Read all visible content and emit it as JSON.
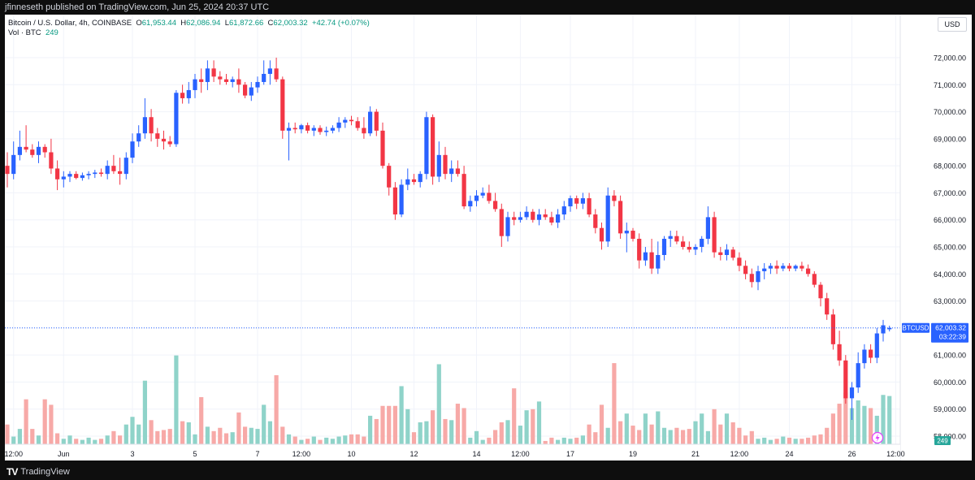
{
  "header": {
    "published_text": "jfinneseth published on TradingView.com, Jun 25, 2024 20:37 UTC"
  },
  "legend": {
    "symbol_line": "Bitcoin / U.S. Dollar, 4h, COINBASE",
    "open_label": "O",
    "open": "61,953.44",
    "high_label": "H",
    "high": "62,086.94",
    "low_label": "L",
    "low": "61,872.66",
    "close_label": "C",
    "close": "62,003.32",
    "change": "+42.74 (+0.07%)",
    "vol_label": "Vol · BTC",
    "vol_value": "249"
  },
  "currency": "USD",
  "price_tag": {
    "symbol": "BTCUSD",
    "price": "62,003.32",
    "countdown": "03:22:39"
  },
  "volume_tag": "249",
  "footer": {
    "brand": "TradingView"
  },
  "colors": {
    "up": "#2962ff",
    "down": "#f23645",
    "vol_up": "#8fd3c9",
    "vol_down": "#f7a9a7"
  },
  "chart_data": {
    "type": "candlestick",
    "title": "",
    "ylim": [
      57000,
      73000
    ],
    "y_ticks": [
      58000,
      59000,
      60000,
      61000,
      62000,
      63000,
      64000,
      65000,
      66000,
      67000,
      68000,
      69000,
      70000,
      71000,
      72000
    ],
    "y_tick_labels": [
      "58,000.00",
      "59,000.00",
      "60,000.00",
      "61,000.00",
      "62,000.00",
      "63,000.00",
      "64,000.00",
      "65,000.00",
      "66,000.00",
      "67,000.00",
      "68,000.00",
      "69,000.00",
      "70,000.00",
      "71,000.00",
      "72,000.00"
    ],
    "x_ticks": [
      {
        "index": 1,
        "label": "12:00"
      },
      {
        "index": 9,
        "label": "Jun"
      },
      {
        "index": 20,
        "label": "3"
      },
      {
        "index": 30,
        "label": "5"
      },
      {
        "index": 40,
        "label": "7"
      },
      {
        "index": 47,
        "label": "12:00"
      },
      {
        "index": 55,
        "label": "10"
      },
      {
        "index": 65,
        "label": "12"
      },
      {
        "index": 75,
        "label": "14"
      },
      {
        "index": 82,
        "label": "12:00"
      },
      {
        "index": 90,
        "label": "17"
      },
      {
        "index": 100,
        "label": "19"
      },
      {
        "index": 110,
        "label": "21"
      },
      {
        "index": 117,
        "label": "12:00"
      },
      {
        "index": 125,
        "label": "24"
      },
      {
        "index": 135,
        "label": "26"
      },
      {
        "index": 142,
        "label": "12:00"
      }
    ],
    "current_price": 62003.32,
    "volume_max": 10000,
    "candles": [
      {
        "o": 68000,
        "h": 68500,
        "l": 67200,
        "c": 67700
      },
      {
        "o": 67700,
        "h": 68900,
        "l": 67500,
        "c": 68400
      },
      {
        "o": 68400,
        "h": 69300,
        "l": 68200,
        "c": 68700
      },
      {
        "o": 68700,
        "h": 69500,
        "l": 68500,
        "c": 68600
      },
      {
        "o": 68600,
        "h": 68800,
        "l": 68300,
        "c": 68400
      },
      {
        "o": 68400,
        "h": 68900,
        "l": 68100,
        "c": 68700
      },
      {
        "o": 68700,
        "h": 68800,
        "l": 68300,
        "c": 68500
      },
      {
        "o": 68500,
        "h": 69000,
        "l": 67700,
        "c": 67900
      },
      {
        "o": 67900,
        "h": 68200,
        "l": 67100,
        "c": 67500
      },
      {
        "o": 67500,
        "h": 67800,
        "l": 67200,
        "c": 67600
      },
      {
        "o": 67600,
        "h": 67800,
        "l": 67400,
        "c": 67700
      },
      {
        "o": 67700,
        "h": 67800,
        "l": 67500,
        "c": 67550
      },
      {
        "o": 67550,
        "h": 67750,
        "l": 67450,
        "c": 67650
      },
      {
        "o": 67650,
        "h": 67800,
        "l": 67500,
        "c": 67700
      },
      {
        "o": 67700,
        "h": 67850,
        "l": 67550,
        "c": 67750
      },
      {
        "o": 67750,
        "h": 67900,
        "l": 67600,
        "c": 67700
      },
      {
        "o": 67700,
        "h": 68200,
        "l": 67500,
        "c": 68000
      },
      {
        "o": 68000,
        "h": 68400,
        "l": 67700,
        "c": 67800
      },
      {
        "o": 67800,
        "h": 68300,
        "l": 67300,
        "c": 67700
      },
      {
        "o": 67700,
        "h": 68500,
        "l": 67500,
        "c": 68300
      },
      {
        "o": 68300,
        "h": 69200,
        "l": 68100,
        "c": 68900
      },
      {
        "o": 68900,
        "h": 69500,
        "l": 68700,
        "c": 69200
      },
      {
        "o": 69200,
        "h": 70500,
        "l": 69000,
        "c": 69800
      },
      {
        "o": 69800,
        "h": 70100,
        "l": 68900,
        "c": 69200
      },
      {
        "o": 69200,
        "h": 69400,
        "l": 68700,
        "c": 69000
      },
      {
        "o": 69000,
        "h": 69300,
        "l": 68600,
        "c": 68900
      },
      {
        "o": 68900,
        "h": 69100,
        "l": 68700,
        "c": 68800
      },
      {
        "o": 68800,
        "h": 70800,
        "l": 68700,
        "c": 70700
      },
      {
        "o": 70700,
        "h": 71000,
        "l": 70300,
        "c": 70500
      },
      {
        "o": 70500,
        "h": 71100,
        "l": 70300,
        "c": 70800
      },
      {
        "o": 70800,
        "h": 71400,
        "l": 70500,
        "c": 71200
      },
      {
        "o": 71200,
        "h": 71600,
        "l": 70700,
        "c": 71100
      },
      {
        "o": 71100,
        "h": 71900,
        "l": 70800,
        "c": 71600
      },
      {
        "o": 71600,
        "h": 71900,
        "l": 71100,
        "c": 71300
      },
      {
        "o": 71300,
        "h": 71500,
        "l": 71000,
        "c": 71200
      },
      {
        "o": 71200,
        "h": 71400,
        "l": 71000,
        "c": 71100
      },
      {
        "o": 71100,
        "h": 71300,
        "l": 70900,
        "c": 71200
      },
      {
        "o": 71200,
        "h": 71600,
        "l": 70700,
        "c": 71000
      },
      {
        "o": 71000,
        "h": 71100,
        "l": 70500,
        "c": 70600
      },
      {
        "o": 70600,
        "h": 71100,
        "l": 70400,
        "c": 70900
      },
      {
        "o": 70900,
        "h": 71300,
        "l": 70700,
        "c": 71100
      },
      {
        "o": 71100,
        "h": 71900,
        "l": 71000,
        "c": 71400
      },
      {
        "o": 71400,
        "h": 71900,
        "l": 71000,
        "c": 71600
      },
      {
        "o": 71600,
        "h": 72000,
        "l": 71100,
        "c": 71200
      },
      {
        "o": 71200,
        "h": 71300,
        "l": 69000,
        "c": 69300
      },
      {
        "o": 69300,
        "h": 69600,
        "l": 68200,
        "c": 69400
      },
      {
        "o": 69400,
        "h": 69600,
        "l": 69200,
        "c": 69350
      },
      {
        "o": 69350,
        "h": 69550,
        "l": 69200,
        "c": 69500
      },
      {
        "o": 69500,
        "h": 69600,
        "l": 69200,
        "c": 69300
      },
      {
        "o": 69300,
        "h": 69500,
        "l": 69100,
        "c": 69400
      },
      {
        "o": 69400,
        "h": 69500,
        "l": 69150,
        "c": 69250
      },
      {
        "o": 69250,
        "h": 69450,
        "l": 69100,
        "c": 69300
      },
      {
        "o": 69300,
        "h": 69500,
        "l": 69200,
        "c": 69400
      },
      {
        "o": 69400,
        "h": 69800,
        "l": 69250,
        "c": 69600
      },
      {
        "o": 69600,
        "h": 69800,
        "l": 69400,
        "c": 69700
      },
      {
        "o": 69700,
        "h": 69850,
        "l": 69500,
        "c": 69650
      },
      {
        "o": 69650,
        "h": 69800,
        "l": 69300,
        "c": 69400
      },
      {
        "o": 69400,
        "h": 69800,
        "l": 69000,
        "c": 69200
      },
      {
        "o": 69200,
        "h": 70200,
        "l": 69100,
        "c": 70000
      },
      {
        "o": 70000,
        "h": 70100,
        "l": 69100,
        "c": 69300
      },
      {
        "o": 69300,
        "h": 69600,
        "l": 67900,
        "c": 68000
      },
      {
        "o": 68000,
        "h": 68100,
        "l": 66900,
        "c": 67200
      },
      {
        "o": 67200,
        "h": 67400,
        "l": 66000,
        "c": 66200
      },
      {
        "o": 66200,
        "h": 67500,
        "l": 66100,
        "c": 67300
      },
      {
        "o": 67300,
        "h": 67900,
        "l": 67100,
        "c": 67500
      },
      {
        "o": 67500,
        "h": 67700,
        "l": 67300,
        "c": 67400
      },
      {
        "o": 67400,
        "h": 67800,
        "l": 67200,
        "c": 67700
      },
      {
        "o": 67700,
        "h": 70000,
        "l": 67500,
        "c": 69800
      },
      {
        "o": 69800,
        "h": 69900,
        "l": 67300,
        "c": 67600
      },
      {
        "o": 67600,
        "h": 68900,
        "l": 67400,
        "c": 68400
      },
      {
        "o": 68400,
        "h": 68700,
        "l": 67500,
        "c": 67700
      },
      {
        "o": 67700,
        "h": 68200,
        "l": 67400,
        "c": 67900
      },
      {
        "o": 67900,
        "h": 68200,
        "l": 67600,
        "c": 67700
      },
      {
        "o": 67700,
        "h": 68000,
        "l": 66400,
        "c": 66500
      },
      {
        "o": 66500,
        "h": 66900,
        "l": 66300,
        "c": 66700
      },
      {
        "o": 66700,
        "h": 67100,
        "l": 66500,
        "c": 66900
      },
      {
        "o": 66900,
        "h": 67200,
        "l": 66800,
        "c": 67000
      },
      {
        "o": 67000,
        "h": 67300,
        "l": 66600,
        "c": 66700
      },
      {
        "o": 66700,
        "h": 67000,
        "l": 66300,
        "c": 66400
      },
      {
        "o": 66400,
        "h": 66600,
        "l": 65000,
        "c": 65400
      },
      {
        "o": 65400,
        "h": 66300,
        "l": 65200,
        "c": 66100
      },
      {
        "o": 66100,
        "h": 66300,
        "l": 65800,
        "c": 66000
      },
      {
        "o": 66000,
        "h": 66300,
        "l": 65900,
        "c": 66100
      },
      {
        "o": 66100,
        "h": 66500,
        "l": 66000,
        "c": 66300
      },
      {
        "o": 66300,
        "h": 66400,
        "l": 65900,
        "c": 66000
      },
      {
        "o": 66000,
        "h": 66400,
        "l": 65800,
        "c": 66200
      },
      {
        "o": 66200,
        "h": 66400,
        "l": 66000,
        "c": 66100
      },
      {
        "o": 66100,
        "h": 66300,
        "l": 65800,
        "c": 65900
      },
      {
        "o": 65900,
        "h": 66400,
        "l": 65700,
        "c": 66200
      },
      {
        "o": 66200,
        "h": 66700,
        "l": 66000,
        "c": 66500
      },
      {
        "o": 66500,
        "h": 66900,
        "l": 66300,
        "c": 66800
      },
      {
        "o": 66800,
        "h": 66900,
        "l": 66400,
        "c": 66600
      },
      {
        "o": 66600,
        "h": 67000,
        "l": 66400,
        "c": 66800
      },
      {
        "o": 66800,
        "h": 67000,
        "l": 66100,
        "c": 66200
      },
      {
        "o": 66200,
        "h": 66400,
        "l": 65500,
        "c": 65700
      },
      {
        "o": 65700,
        "h": 65900,
        "l": 64900,
        "c": 65200
      },
      {
        "o": 65200,
        "h": 67200,
        "l": 65000,
        "c": 66900
      },
      {
        "o": 66900,
        "h": 67100,
        "l": 66500,
        "c": 66700
      },
      {
        "o": 66700,
        "h": 66900,
        "l": 65300,
        "c": 65500
      },
      {
        "o": 65500,
        "h": 65900,
        "l": 64800,
        "c": 65600
      },
      {
        "o": 65600,
        "h": 65700,
        "l": 65200,
        "c": 65300
      },
      {
        "o": 65300,
        "h": 65500,
        "l": 64200,
        "c": 64500
      },
      {
        "o": 64500,
        "h": 65000,
        "l": 64300,
        "c": 64800
      },
      {
        "o": 64800,
        "h": 65300,
        "l": 64000,
        "c": 64200
      },
      {
        "o": 64200,
        "h": 65200,
        "l": 64000,
        "c": 64700
      },
      {
        "o": 64700,
        "h": 65400,
        "l": 64500,
        "c": 65300
      },
      {
        "o": 65300,
        "h": 65600,
        "l": 65000,
        "c": 65400
      },
      {
        "o": 65400,
        "h": 65600,
        "l": 65100,
        "c": 65200
      },
      {
        "o": 65200,
        "h": 65400,
        "l": 64900,
        "c": 65000
      },
      {
        "o": 65000,
        "h": 65200,
        "l": 64800,
        "c": 64900
      },
      {
        "o": 64900,
        "h": 65100,
        "l": 64700,
        "c": 65000
      },
      {
        "o": 65000,
        "h": 65400,
        "l": 64800,
        "c": 65300
      },
      {
        "o": 65300,
        "h": 66500,
        "l": 65100,
        "c": 66100
      },
      {
        "o": 66100,
        "h": 66300,
        "l": 64600,
        "c": 64800
      },
      {
        "o": 64800,
        "h": 65000,
        "l": 64500,
        "c": 64700
      },
      {
        "o": 64700,
        "h": 65100,
        "l": 64500,
        "c": 64900
      },
      {
        "o": 64900,
        "h": 65000,
        "l": 64500,
        "c": 64600
      },
      {
        "o": 64600,
        "h": 64800,
        "l": 64100,
        "c": 64300
      },
      {
        "o": 64300,
        "h": 64500,
        "l": 63800,
        "c": 64000
      },
      {
        "o": 64000,
        "h": 64200,
        "l": 63500,
        "c": 63700
      },
      {
        "o": 63700,
        "h": 64300,
        "l": 63400,
        "c": 64100
      },
      {
        "o": 64100,
        "h": 64400,
        "l": 63800,
        "c": 64200
      },
      {
        "o": 64200,
        "h": 64400,
        "l": 64000,
        "c": 64300
      },
      {
        "o": 64300,
        "h": 64500,
        "l": 64000,
        "c": 64200
      },
      {
        "o": 64200,
        "h": 64400,
        "l": 64100,
        "c": 64300
      },
      {
        "o": 64300,
        "h": 64400,
        "l": 64100,
        "c": 64200
      },
      {
        "o": 64200,
        "h": 64350,
        "l": 64100,
        "c": 64300
      },
      {
        "o": 64300,
        "h": 64450,
        "l": 64100,
        "c": 64200
      },
      {
        "o": 64200,
        "h": 64350,
        "l": 63900,
        "c": 64000
      },
      {
        "o": 64000,
        "h": 64100,
        "l": 63500,
        "c": 63600
      },
      {
        "o": 63600,
        "h": 63700,
        "l": 62800,
        "c": 63100
      },
      {
        "o": 63100,
        "h": 63300,
        "l": 62300,
        "c": 62500
      },
      {
        "o": 62500,
        "h": 62700,
        "l": 61200,
        "c": 61400
      },
      {
        "o": 61400,
        "h": 61900,
        "l": 60600,
        "c": 60800
      },
      {
        "o": 60800,
        "h": 61000,
        "l": 59200,
        "c": 59400
      },
      {
        "o": 59400,
        "h": 60000,
        "l": 58600,
        "c": 59800
      },
      {
        "o": 59800,
        "h": 61100,
        "l": 59600,
        "c": 60700
      },
      {
        "o": 60700,
        "h": 61400,
        "l": 60500,
        "c": 61200
      },
      {
        "o": 61200,
        "h": 61400,
        "l": 60700,
        "c": 60900
      },
      {
        "o": 60900,
        "h": 62000,
        "l": 60700,
        "c": 61800
      },
      {
        "o": 61800,
        "h": 62300,
        "l": 61500,
        "c": 62100
      },
      {
        "o": 61953,
        "h": 62087,
        "l": 61873,
        "c": 62003
      }
    ],
    "volumes": [
      1800,
      700,
      1400,
      4100,
      1400,
      800,
      4100,
      3600,
      1000,
      500,
      800,
      500,
      400,
      600,
      400,
      500,
      800,
      1200,
      800,
      1800,
      2500,
      1800,
      5800,
      2200,
      1200,
      1300,
      1400,
      8100,
      2100,
      2000,
      900,
      4300,
      1600,
      1200,
      1500,
      1000,
      1100,
      2900,
      1600,
      1500,
      1400,
      3600,
      2100,
      6300,
      1600,
      900,
      700,
      400,
      500,
      700,
      400,
      600,
      500,
      700,
      800,
      900,
      900,
      700,
      2600,
      2300,
      3500,
      3500,
      3500,
      5300,
      3200,
      1100,
      2000,
      2100,
      3100,
      7300,
      2300,
      2200,
      3700,
      3300,
      600,
      1200,
      400,
      600,
      1300,
      2000,
      2200,
      5100,
      1700,
      3100,
      3200,
      3900,
      300,
      600,
      400,
      600,
      500,
      600,
      800,
      1800,
      1100,
      3600,
      1500,
      7400,
      2100,
      2800,
      1700,
      1300,
      2800,
      1800,
      3000,
      1500,
      1300,
      1500,
      1300,
      1400,
      2100,
      2800,
      1200,
      3200,
      1800,
      2800,
      2000,
      1500,
      800,
      1200,
      500,
      600,
      400,
      500,
      700,
      600,
      500,
      500,
      600,
      800,
      900,
      1500,
      2800,
      3700,
      4700,
      3300,
      4000,
      3500,
      3300,
      2600,
      4500,
      4400
    ]
  }
}
